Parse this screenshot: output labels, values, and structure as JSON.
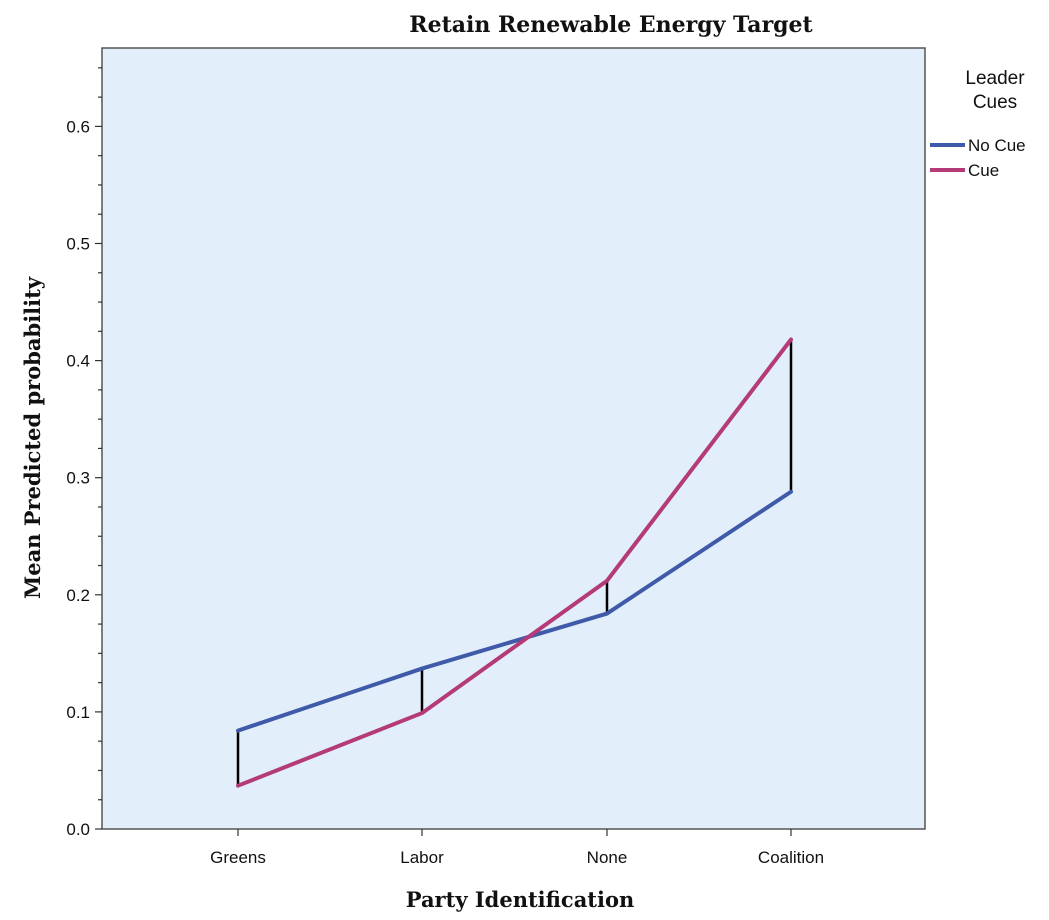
{
  "chart_data": {
    "type": "line",
    "title": "Retain Renewable Energy Target",
    "xlabel": "Party Identification",
    "ylabel": "Mean Predicted probability",
    "categories": [
      "Greens",
      "Labor",
      "None",
      "Coalition"
    ],
    "ylim": [
      0,
      0.67
    ],
    "yticks": [
      0.0,
      0.1,
      0.2,
      0.3,
      0.4,
      0.5,
      0.6
    ],
    "ytick_labels": [
      "0.0",
      "0.1",
      "0.2",
      "0.3",
      "0.4",
      "0.5",
      "0.6"
    ],
    "grid": false,
    "legend": {
      "title": "Leader Cues",
      "placement": "top-right outside",
      "entries": [
        "No Cue",
        "Cue"
      ]
    },
    "series": [
      {
        "name": "No Cue",
        "color": "#3F5AA8",
        "values": [
          0.084,
          0.137,
          0.184,
          0.288
        ]
      },
      {
        "name": "Cue",
        "color": "#B43A78",
        "values": [
          0.037,
          0.099,
          0.212,
          0.418
        ]
      }
    ],
    "difference_bars": {
      "color": "#000000",
      "description_source": "vertical bars connect the two series at each category"
    },
    "plot_background": "#E2EEFA"
  }
}
